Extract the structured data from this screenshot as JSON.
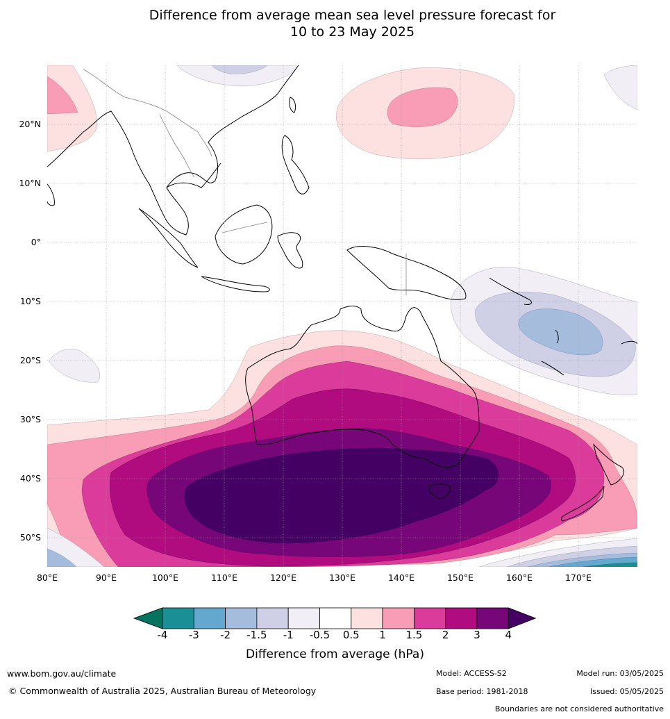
{
  "title": {
    "line1": "Difference from average mean sea level pressure forecast for",
    "line2": "10 to 23 May 2025"
  },
  "map": {
    "lon_labels": [
      "80°E",
      "90°E",
      "100°E",
      "110°E",
      "120°E",
      "130°E",
      "140°E",
      "150°E",
      "160°E",
      "170°E"
    ],
    "lat_labels": [
      "20°N",
      "10°N",
      "0°",
      "10°S",
      "20°S",
      "30°S",
      "40°S",
      "50°S"
    ],
    "lon_range": [
      80,
      180
    ],
    "lat_range": [
      -55,
      30
    ],
    "grid": true,
    "coastlines": true
  },
  "colorbar": {
    "ticks": [
      "-4",
      "-3",
      "-2",
      "-1.5",
      "-1",
      "-0.5",
      "0.5",
      "1",
      "1.5",
      "2",
      "3",
      "4"
    ],
    "colors": [
      "#1a8f95",
      "#64a8cf",
      "#a5bcdc",
      "#cfd0e6",
      "#f1eff5",
      "#ffffff",
      "#fde0e0",
      "#f99cb6",
      "#db3b9b",
      "#b00b7f",
      "#770678"
    ],
    "under_color": "#06735f",
    "over_color": "#440063",
    "label": "Difference from average (hPa)"
  },
  "footer": {
    "website": "www.bom.gov.au/climate",
    "copyright": "© Commonwealth of Australia 2025, Australian Bureau of Meteorology",
    "model": "Model: ACCESS-S2",
    "base_period": "Base period: 1981-2018",
    "model_run": "Model run: 03/05/2025",
    "issued": "Issued: 05/05/2025",
    "disclaimer": "Boundaries are not considered authoritative"
  }
}
